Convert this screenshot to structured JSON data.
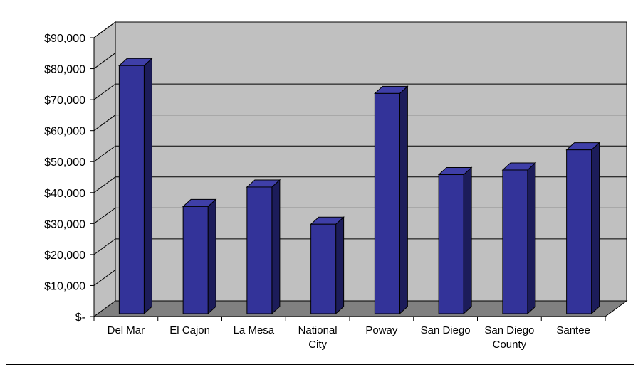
{
  "chart_data": {
    "type": "bar",
    "style": "3d-column",
    "title": "",
    "xlabel": "",
    "ylabel": "",
    "categories": [
      [
        "Del Mar"
      ],
      [
        "El Cajon"
      ],
      [
        "La Mesa"
      ],
      [
        "National",
        "City"
      ],
      [
        "Poway"
      ],
      [
        "San Diego"
      ],
      [
        "San Diego",
        "County"
      ],
      [
        "Santee"
      ]
    ],
    "values": [
      81000,
      35500,
      41800,
      29800,
      72000,
      45800,
      47300,
      53800
    ],
    "ylim": [
      0,
      90000
    ],
    "yticks": [
      {
        "value": 0,
        "label": "$-"
      },
      {
        "value": 10000,
        "label": "$10,000"
      },
      {
        "value": 20000,
        "label": "$20,000"
      },
      {
        "value": 30000,
        "label": "$30,000"
      },
      {
        "value": 40000,
        "label": "$40,000"
      },
      {
        "value": 50000,
        "label": "$50,000"
      },
      {
        "value": 60000,
        "label": "$60,000"
      },
      {
        "value": 70000,
        "label": "$70,000"
      },
      {
        "value": 80000,
        "label": "$80,000"
      },
      {
        "value": 90000,
        "label": "$90,000"
      }
    ],
    "grid": true,
    "legend": "none",
    "colors": {
      "bar_front": "#333399",
      "bar_top": "#3f3fa8",
      "bar_side": "#1c1c5a",
      "wall": "#c0c0c0",
      "floor": "#808080",
      "gridline": "#000000"
    }
  }
}
